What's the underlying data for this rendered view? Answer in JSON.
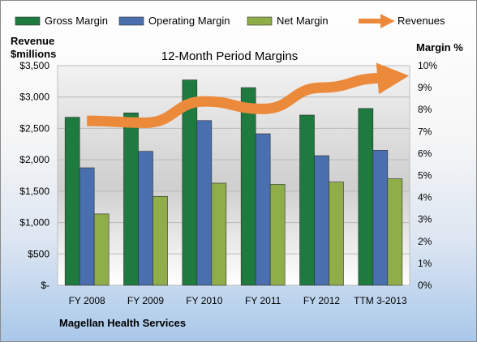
{
  "chart_data": {
    "type": "bar",
    "title": "12-Month Period Margins",
    "left_axis_title_line1": "Revenue",
    "left_axis_title_line2": "$millions",
    "right_axis_title": "Margin %",
    "footer": "Magellan Health Services",
    "categories": [
      "FY 2008",
      "FY 2009",
      "FY 2010",
      "FY 2011",
      "FY 2012",
      "TTM 3-2013"
    ],
    "y_left": {
      "min": 0,
      "max": 3500,
      "step": 500,
      "tick_labels": [
        "$-",
        "$500",
        "$1,000",
        "$1,500",
        "$2,000",
        "$2,500",
        "$3,000",
        "$3,500"
      ]
    },
    "y_right": {
      "min": 0,
      "max": 10,
      "step": 1,
      "tick_labels": [
        "0%",
        "1%",
        "2%",
        "3%",
        "4%",
        "5%",
        "6%",
        "7%",
        "8%",
        "9%",
        "10%"
      ]
    },
    "series": [
      {
        "name": "Gross Margin",
        "kind": "bar",
        "axis": "right",
        "color": "#1f7a3f",
        "values": [
          7.65,
          7.85,
          9.35,
          9.0,
          7.75,
          8.05
        ]
      },
      {
        "name": "Operating Margin",
        "kind": "bar",
        "axis": "right",
        "color": "#4a6fae",
        "values": [
          5.35,
          6.1,
          7.5,
          6.9,
          5.9,
          6.15
        ]
      },
      {
        "name": "Net Margin",
        "kind": "bar",
        "axis": "right",
        "color": "#8fae4a",
        "values": [
          3.25,
          4.05,
          4.65,
          4.6,
          4.7,
          4.85
        ]
      },
      {
        "name": "Revenues",
        "kind": "line",
        "axis": "left",
        "color": "#ec8a3c",
        "values": [
          2620,
          2590,
          2930,
          2810,
          3150,
          3300
        ]
      }
    ],
    "legend_position": "top",
    "grid": true
  }
}
